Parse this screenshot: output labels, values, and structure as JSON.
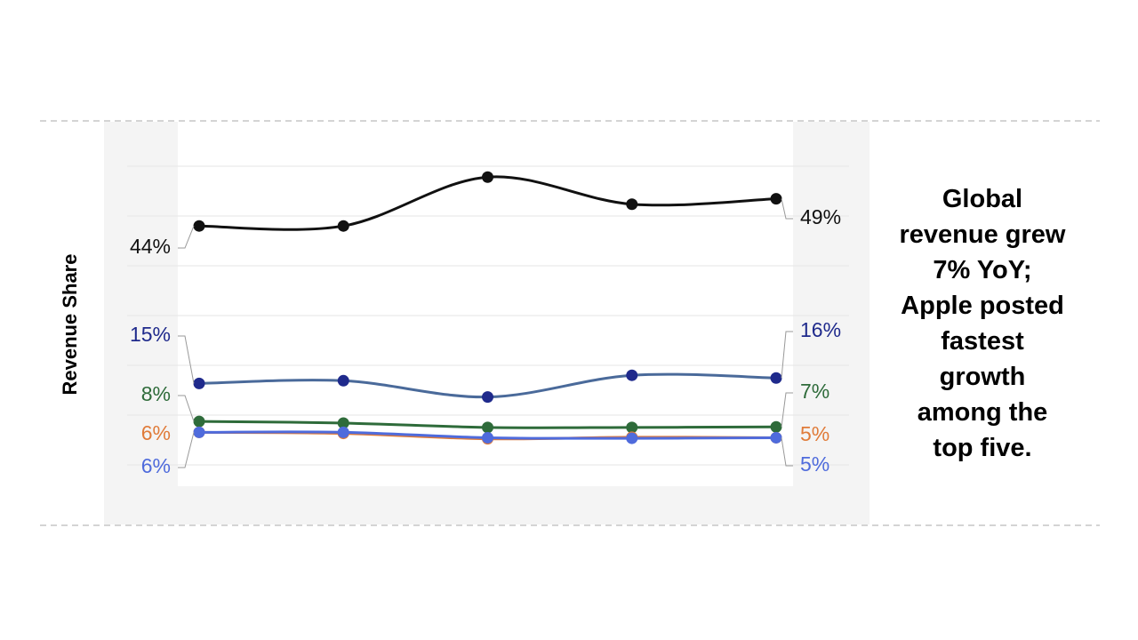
{
  "chart_data": {
    "type": "line",
    "ylabel": "Revenue Share",
    "categories": [
      null,
      null,
      null,
      null,
      null
    ],
    "ylim": [
      0,
      55
    ],
    "series": [
      {
        "color": "#111111",
        "line_color": "#111111",
        "values": [
          44,
          44,
          53,
          48,
          49
        ],
        "value_labels": [
          "44%",
          null,
          null,
          null,
          "49%"
        ]
      },
      {
        "color": "#1f2a8c",
        "line_color": "#4a6a9a",
        "values": [
          15,
          15.5,
          12.5,
          16.5,
          16
        ],
        "value_labels": [
          "15%",
          null,
          null,
          null,
          "16%"
        ]
      },
      {
        "color": "#2e6b3a",
        "line_color": "#2e6b3a",
        "values": [
          8,
          7.7,
          6.9,
          6.9,
          7
        ],
        "value_labels": [
          "8%",
          null,
          null,
          null,
          "7%"
        ]
      },
      {
        "color": "#e07b39",
        "line_color": "#e07b39",
        "values": [
          6,
          5.8,
          4.8,
          5.1,
          5
        ],
        "value_labels": [
          "6%",
          null,
          null,
          null,
          "5%"
        ]
      },
      {
        "color": "#4f6bdc",
        "line_color": "#4f6bdc",
        "values": [
          6,
          6,
          5,
          4.9,
          5
        ],
        "value_labels": [
          "6%",
          null,
          null,
          null,
          "5%"
        ]
      }
    ],
    "annotation_lines": [
      "Global",
      "revenue grew",
      "7% YoY;",
      "Apple posted",
      "fastest",
      "growth",
      "among the",
      "top five."
    ]
  }
}
